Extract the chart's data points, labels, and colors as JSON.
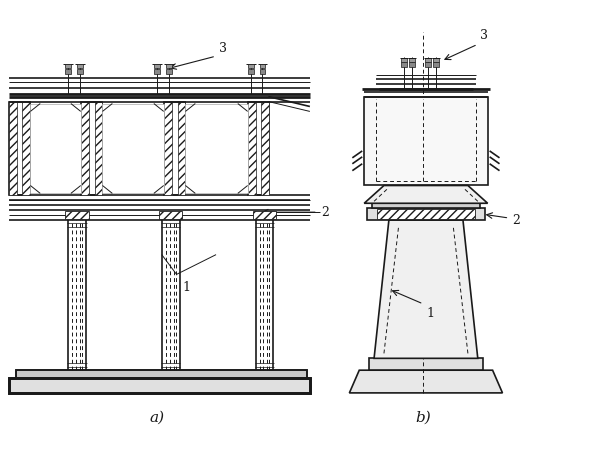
{
  "fig_width": 6.0,
  "fig_height": 4.5,
  "dpi": 100,
  "bg_color": "#ffffff",
  "line_color": "#1a1a1a",
  "label_a": "a)",
  "label_b": "b)",
  "labels": [
    "1",
    "2",
    "3"
  ]
}
